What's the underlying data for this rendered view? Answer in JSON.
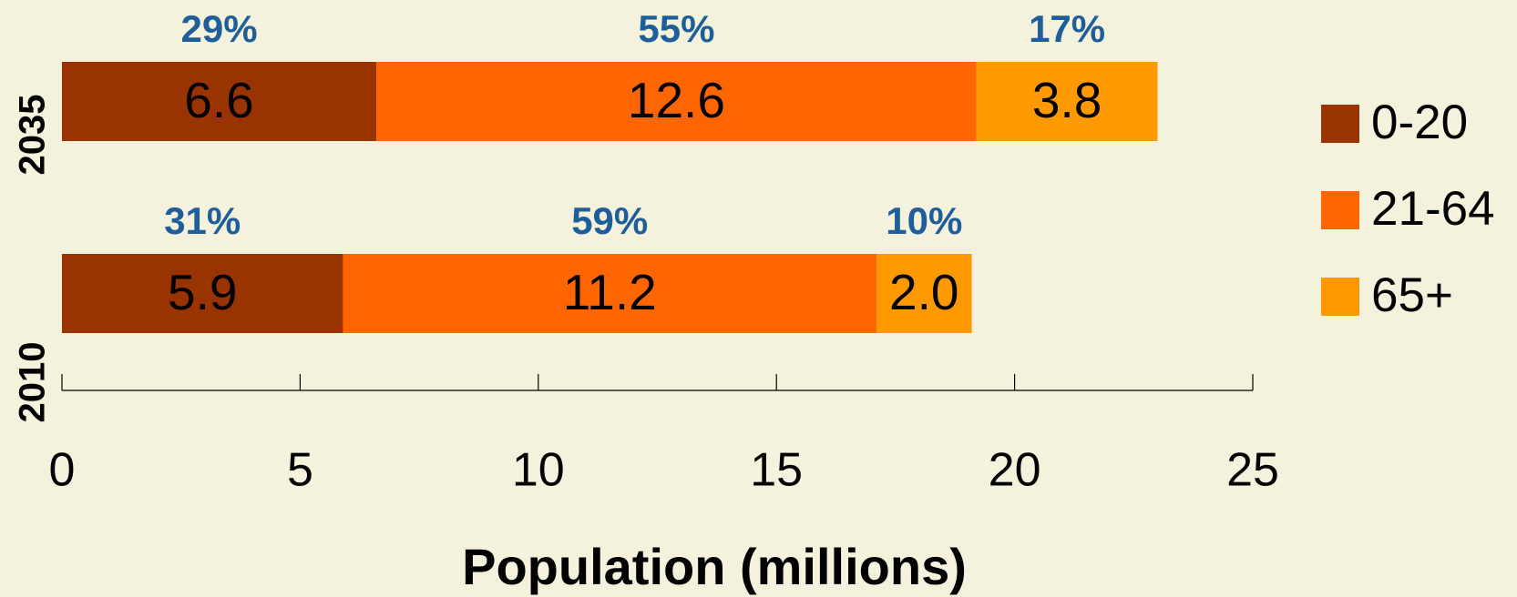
{
  "chart_data": {
    "type": "bar",
    "orientation": "horizontal",
    "stacked": true,
    "xlabel": "Population (millions)",
    "categories": [
      "2010",
      "2035"
    ],
    "series": [
      {
        "name": "0-20",
        "color": "#993300",
        "values": [
          5.9,
          6.6
        ],
        "share_labels": [
          "31%",
          "29%"
        ]
      },
      {
        "name": "21-64",
        "color": "#ff6600",
        "values": [
          11.2,
          12.6
        ],
        "share_labels": [
          "59%",
          "55%"
        ]
      },
      {
        "name": "65+",
        "color": "#ff9900",
        "values": [
          2.0,
          3.8
        ],
        "value_labels": [
          "2.0",
          "3.8"
        ],
        "share_labels": [
          "10%",
          "17%"
        ]
      }
    ],
    "xlim": [
      0,
      25
    ],
    "xticks": [
      0,
      5,
      10,
      15,
      20,
      25
    ],
    "grid": false,
    "legend": "right"
  }
}
